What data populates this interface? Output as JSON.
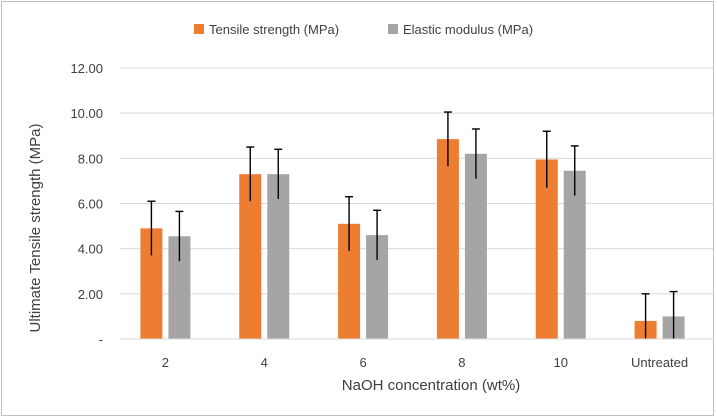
{
  "chart_data": {
    "type": "bar",
    "title": "",
    "xlabel": "NaOH concentration (wt%)",
    "ylabel": "Ultimate Tensile strength (MPa)",
    "categories": [
      "2",
      "4",
      "6",
      "8",
      "10",
      "Untreated"
    ],
    "ylim": [
      0,
      12
    ],
    "yticks": [
      0,
      2,
      4,
      6,
      8,
      10,
      12
    ],
    "ytick_labels": [
      "-",
      "2.00",
      "4.00",
      "6.00",
      "8.00",
      "10.00",
      "12.00"
    ],
    "grid": true,
    "legend_position": "top",
    "series": [
      {
        "name": "Tensile strength (MPa)",
        "color": "#ed7d31",
        "values": [
          4.9,
          7.3,
          5.1,
          8.85,
          7.95,
          0.8
        ],
        "errors": [
          1.2,
          1.2,
          1.2,
          1.2,
          1.25,
          1.2
        ]
      },
      {
        "name": "Elastic modulus (MPa)",
        "color": "#a5a5a5",
        "values": [
          4.55,
          7.3,
          4.6,
          8.2,
          7.45,
          1.0
        ],
        "errors": [
          1.1,
          1.1,
          1.1,
          1.1,
          1.1,
          1.1
        ]
      }
    ]
  }
}
